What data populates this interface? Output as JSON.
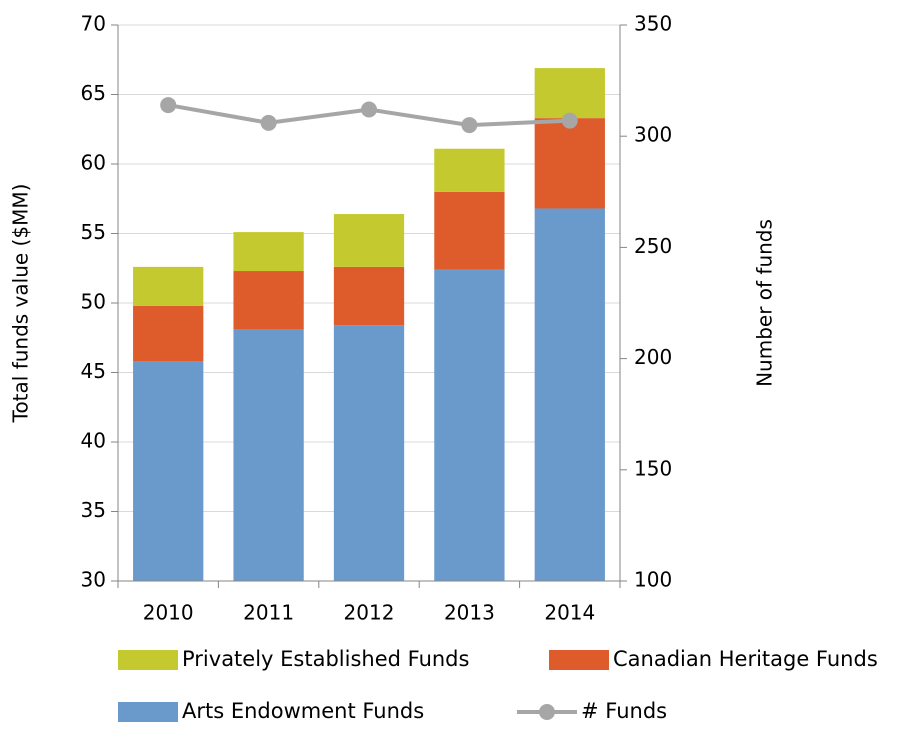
{
  "chart_data": {
    "type": "bar",
    "categories": [
      "2010",
      "2011",
      "2012",
      "2013",
      "2014"
    ],
    "ylabel": "Total funds value ($MM)",
    "y2label": "Number of funds",
    "ylim": [
      30,
      70
    ],
    "yticks": [
      30,
      35,
      40,
      45,
      50,
      55,
      60,
      65,
      70
    ],
    "y2lim": [
      100,
      350
    ],
    "y2ticks": [
      100,
      150,
      200,
      250,
      300,
      350
    ],
    "grid": true,
    "stacked": true,
    "legend": "bottom",
    "series": [
      {
        "name": "Arts Endowment Funds",
        "color": "#6a9acb",
        "values": [
          45.8,
          48.1,
          48.4,
          52.4,
          56.8
        ]
      },
      {
        "name": "Canadian Heritage Funds",
        "color": "#de5b2b",
        "values": [
          4.0,
          4.2,
          4.2,
          5.6,
          6.5
        ]
      },
      {
        "name": "Privately Established Funds",
        "color": "#c4c92f",
        "values": [
          2.8,
          2.8,
          3.8,
          3.1,
          3.6
        ]
      },
      {
        "name": "# Funds",
        "color": "#a6a6a6",
        "type": "line",
        "axis": "y2",
        "values": [
          314,
          306,
          312,
          305,
          307
        ]
      }
    ]
  }
}
